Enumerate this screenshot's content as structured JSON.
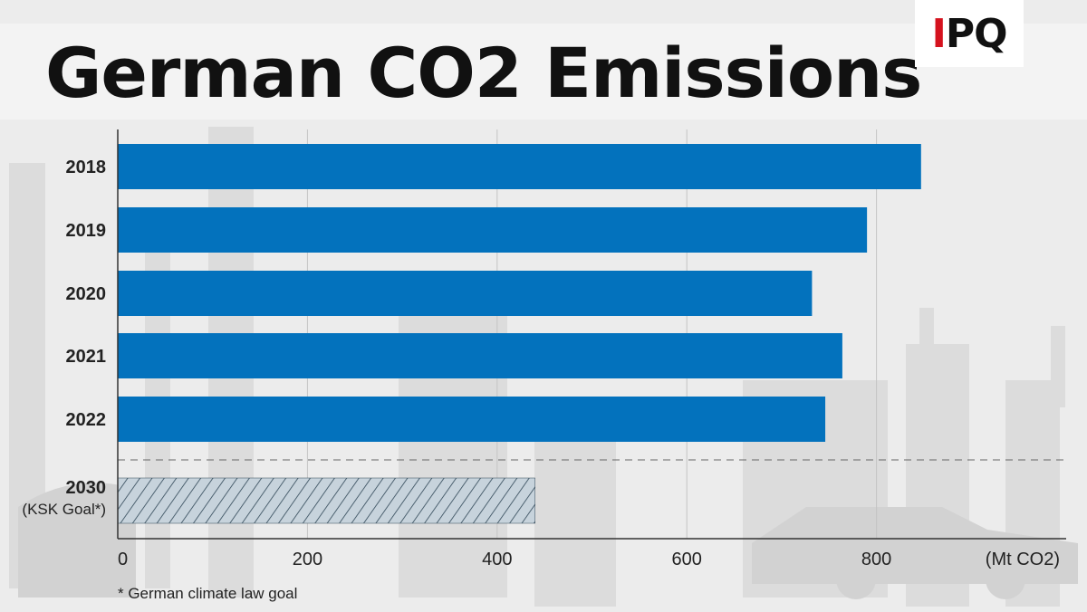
{
  "title": "German CO2 Emissions",
  "logo": {
    "text_red": "I",
    "text_black": "PQ"
  },
  "footnote": "* German climate law goal",
  "colors": {
    "bar": "#0372bd",
    "goal_fill": "#c7d3dc",
    "goal_stripe": "#2f4656",
    "brand_red": "#d5121e"
  },
  "chart_data": {
    "type": "bar",
    "orientation": "horizontal",
    "title": "German CO2 Emissions",
    "unit_label": "(Mt CO2)",
    "categories": [
      "2018",
      "2019",
      "2020",
      "2021",
      "2022",
      "2030"
    ],
    "category_sublabels": [
      "",
      "",
      "",
      "",
      "",
      "(KSK Goal*)"
    ],
    "values": [
      847,
      790,
      732,
      764,
      746,
      440
    ],
    "bar_styles": [
      "solid",
      "solid",
      "solid",
      "solid",
      "solid",
      "hatched"
    ],
    "xlim": [
      0,
      1000
    ],
    "xticks": [
      0,
      200,
      400,
      600,
      800
    ],
    "grid": true,
    "separator_before_category": "2030"
  }
}
